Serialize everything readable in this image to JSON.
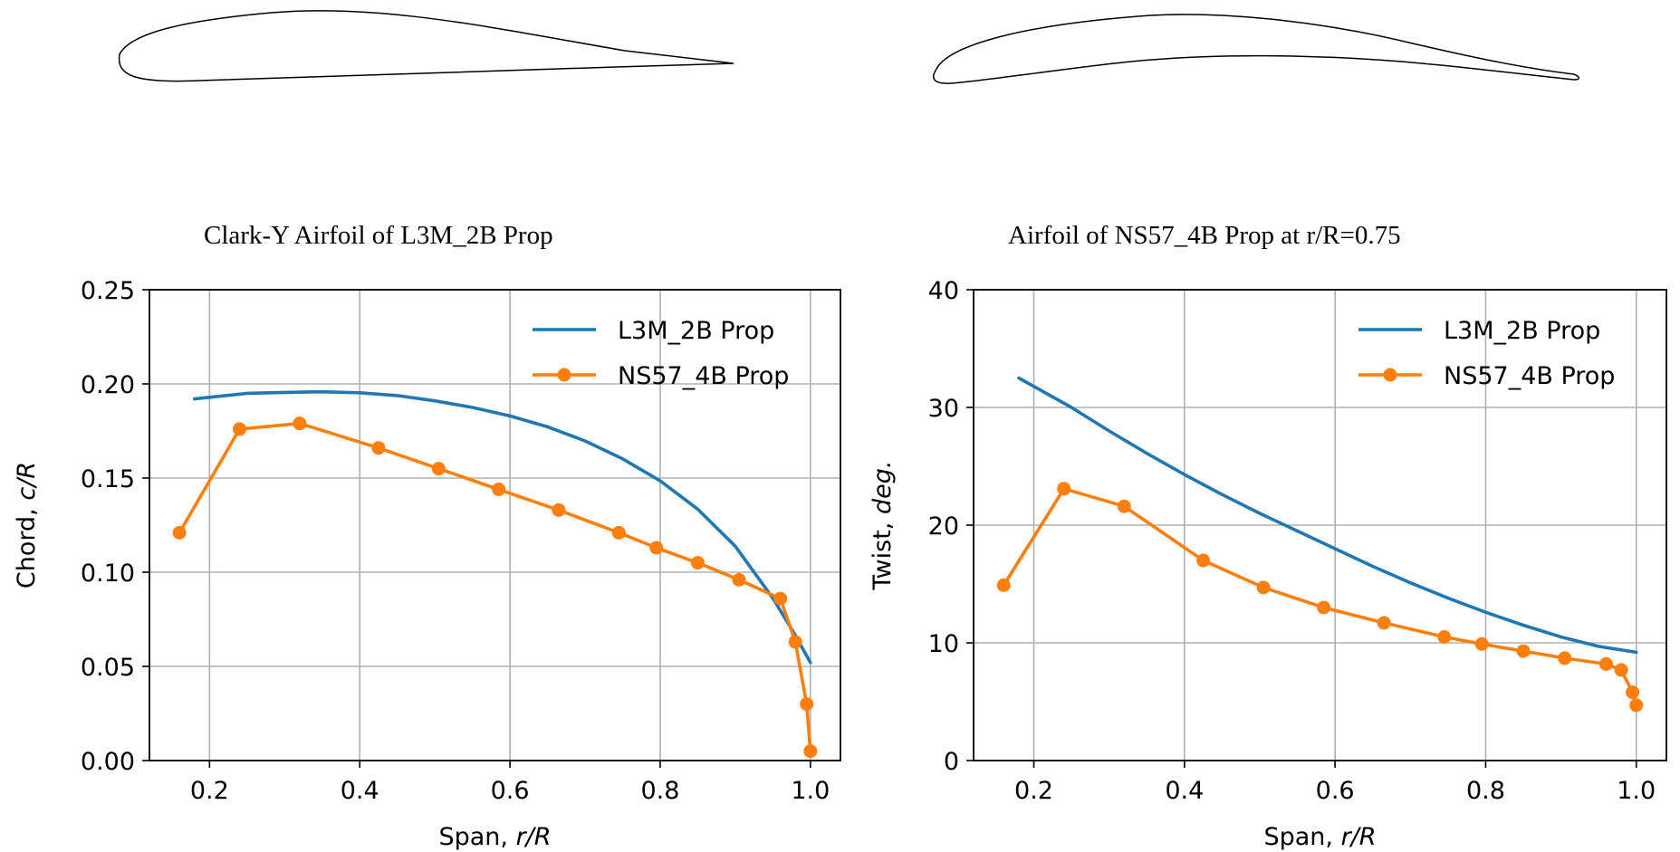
{
  "airfoils": [
    {
      "caption": "Clark-Y Airfoil of L3M_2B Prop"
    },
    {
      "caption": "Airfoil of NS57_4B Prop at r/R=0.75"
    }
  ],
  "colors": {
    "l3m": "#1f77b4",
    "ns57": "#ff7f0e",
    "grid": "#b0b0b0",
    "axis": "#000000"
  },
  "chart_data": [
    {
      "type": "line",
      "title": "",
      "xlabel_prefix": "Span, ",
      "xlabel_var": "r/R",
      "ylabel_prefix": "Chord, ",
      "ylabel_var": "c/R",
      "xlim": [
        0.12,
        1.04
      ],
      "ylim": [
        0.0,
        0.25
      ],
      "xticks": [
        0.2,
        0.4,
        0.6,
        0.8,
        1.0
      ],
      "xtick_labels": [
        "0.2",
        "0.4",
        "0.6",
        "0.8",
        "1.0"
      ],
      "yticks": [
        0.0,
        0.05,
        0.1,
        0.15,
        0.2,
        0.25
      ],
      "ytick_labels": [
        "0.00",
        "0.05",
        "0.10",
        "0.15",
        "0.20",
        "0.25"
      ],
      "grid": true,
      "legend_position": "top-right",
      "series": [
        {
          "name": "L3M_2B Prop",
          "color_key": "l3m",
          "markers": false,
          "x": [
            0.18,
            0.25,
            0.3,
            0.35,
            0.4,
            0.45,
            0.5,
            0.55,
            0.6,
            0.65,
            0.7,
            0.75,
            0.8,
            0.85,
            0.9,
            0.95,
            0.98,
            1.0
          ],
          "y": [
            0.192,
            0.195,
            0.1955,
            0.1958,
            0.1953,
            0.1938,
            0.191,
            0.1875,
            0.183,
            0.1772,
            0.1697,
            0.1602,
            0.1485,
            0.1335,
            0.1138,
            0.0862,
            0.0665,
            0.052
          ]
        },
        {
          "name": "NS57_4B Prop",
          "color_key": "ns57",
          "markers": true,
          "x": [
            0.16,
            0.24,
            0.32,
            0.425,
            0.505,
            0.585,
            0.665,
            0.745,
            0.795,
            0.85,
            0.905,
            0.96,
            0.98,
            0.995,
            1.0
          ],
          "y": [
            0.121,
            0.176,
            0.179,
            0.166,
            0.155,
            0.144,
            0.133,
            0.121,
            0.113,
            0.105,
            0.096,
            0.086,
            0.063,
            0.03,
            0.005
          ]
        }
      ]
    },
    {
      "type": "line",
      "title": "",
      "xlabel_prefix": "Span, ",
      "xlabel_var": "r/R",
      "ylabel_prefix": "Twist, ",
      "ylabel_var": "deg.",
      "xlim": [
        0.12,
        1.04
      ],
      "ylim": [
        0,
        40
      ],
      "xticks": [
        0.2,
        0.4,
        0.6,
        0.8,
        1.0
      ],
      "xtick_labels": [
        "0.2",
        "0.4",
        "0.6",
        "0.8",
        "1.0"
      ],
      "yticks": [
        0,
        10,
        20,
        30,
        40
      ],
      "ytick_labels": [
        "0",
        "10",
        "20",
        "30",
        "40"
      ],
      "grid": true,
      "legend_position": "top-right",
      "series": [
        {
          "name": "L3M_2B Prop",
          "color_key": "l3m",
          "markers": false,
          "x": [
            0.18,
            0.25,
            0.3,
            0.35,
            0.4,
            0.45,
            0.5,
            0.55,
            0.6,
            0.65,
            0.7,
            0.75,
            0.8,
            0.85,
            0.9,
            0.95,
            1.0
          ],
          "y": [
            32.5,
            30.0,
            28.0,
            26.1,
            24.3,
            22.6,
            21.0,
            19.5,
            18.0,
            16.5,
            15.1,
            13.8,
            12.6,
            11.5,
            10.5,
            9.7,
            9.2
          ]
        },
        {
          "name": "NS57_4B Prop",
          "color_key": "ns57",
          "markers": true,
          "x": [
            0.16,
            0.24,
            0.32,
            0.425,
            0.505,
            0.585,
            0.665,
            0.745,
            0.795,
            0.85,
            0.905,
            0.96,
            0.98,
            0.995,
            1.0
          ],
          "y": [
            14.9,
            23.1,
            21.6,
            17.0,
            14.7,
            13.0,
            11.7,
            10.5,
            9.9,
            9.3,
            8.7,
            8.2,
            7.7,
            5.8,
            4.7
          ]
        }
      ]
    }
  ]
}
